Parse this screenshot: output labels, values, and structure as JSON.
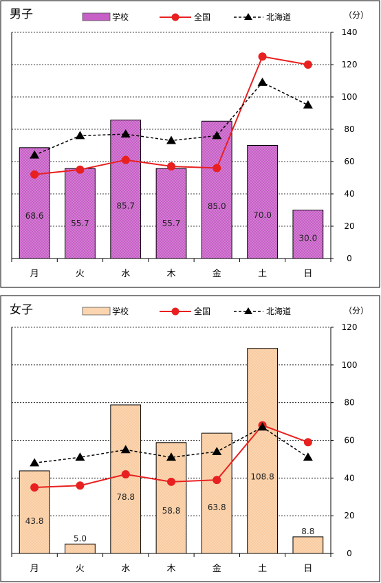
{
  "colors": {
    "boys_bar": "#c65fc6",
    "girls_bar": "#fbd5b0",
    "national": "#e82020",
    "hokkaido": "#000000"
  },
  "chart_data": [
    {
      "type": "bar",
      "title": "男子",
      "unit": "（分）",
      "categories": [
        "月",
        "火",
        "水",
        "木",
        "金",
        "土",
        "日"
      ],
      "ylim": [
        0,
        140
      ],
      "yticks": [
        0,
        20,
        40,
        60,
        80,
        100,
        120,
        140
      ],
      "grid": true,
      "legend_position": "top",
      "series": [
        {
          "name": "学校",
          "kind": "bar",
          "values": [
            68.6,
            55.7,
            85.7,
            55.7,
            85.0,
            70.0,
            30.0
          ],
          "labels": [
            "68.6",
            "55.7",
            "85.7",
            "55.7",
            "85.0",
            "70.0",
            "30.0"
          ]
        },
        {
          "name": "全国",
          "kind": "line",
          "marker": "circle",
          "values": [
            52,
            55,
            61,
            57,
            56,
            125,
            120
          ]
        },
        {
          "name": "北海道",
          "kind": "line",
          "marker": "triangle",
          "dashed": true,
          "values": [
            64,
            76,
            77,
            73,
            76,
            109,
            95
          ]
        }
      ]
    },
    {
      "type": "bar",
      "title": "女子",
      "unit": "（分）",
      "categories": [
        "月",
        "火",
        "水",
        "木",
        "金",
        "土",
        "日"
      ],
      "ylim": [
        0,
        120
      ],
      "yticks": [
        0,
        20,
        40,
        60,
        80,
        100,
        120
      ],
      "grid": true,
      "legend_position": "top",
      "series": [
        {
          "name": "学校",
          "kind": "bar",
          "values": [
            43.8,
            5.0,
            78.8,
            58.8,
            63.8,
            108.8,
            8.8
          ],
          "labels": [
            "43.8",
            "5.0",
            "78.8",
            "58.8",
            "63.8",
            "108.8",
            "8.8"
          ]
        },
        {
          "name": "全国",
          "kind": "line",
          "marker": "circle",
          "values": [
            35,
            36,
            42,
            38,
            39,
            68,
            59
          ]
        },
        {
          "name": "北海道",
          "kind": "line",
          "marker": "triangle",
          "dashed": true,
          "values": [
            48,
            51,
            55,
            51,
            54,
            67,
            51
          ]
        }
      ]
    }
  ]
}
